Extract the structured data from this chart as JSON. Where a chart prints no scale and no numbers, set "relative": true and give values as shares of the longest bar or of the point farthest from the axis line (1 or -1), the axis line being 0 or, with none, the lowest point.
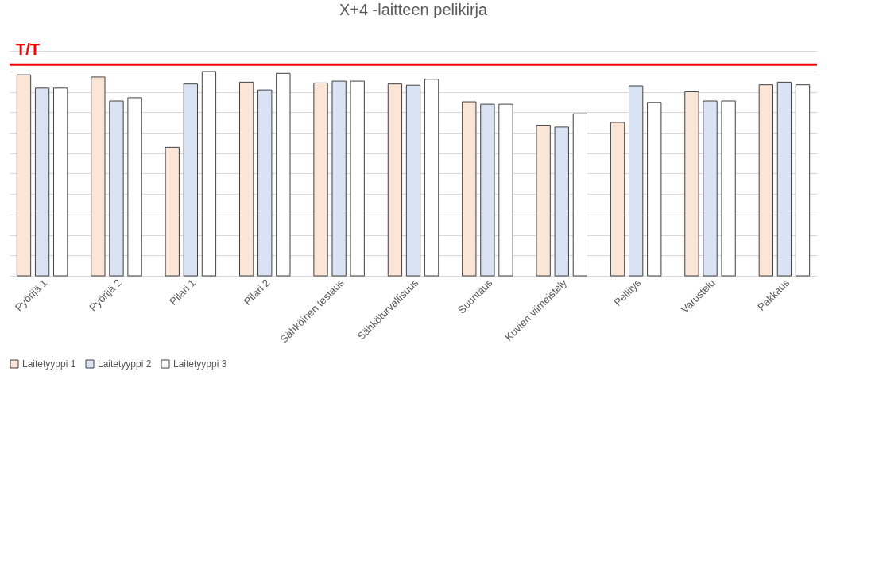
{
  "chart_data": {
    "type": "bar",
    "title": "X+4 -laitteen pelikirja",
    "relative": true,
    "grid": "y",
    "legend": "bottom",
    "categories": [
      "Pyörijä 1",
      "Pyörijä 2",
      "Pilari 1",
      "Pilari 2",
      "Sähköinen testaus",
      "Sähköturvallisuus",
      "Suuntaus",
      "Kuvien viimeistely",
      "Pellitys",
      "Varustelu",
      "Pakkaus"
    ],
    "series": [
      {
        "name": "Laitetyyppi 1",
        "color": "#fbe5d6",
        "values": [
          0.984,
          0.973,
          0.629,
          0.948,
          0.944,
          0.939,
          0.852,
          0.737,
          0.751,
          0.901,
          0.935
        ]
      },
      {
        "name": "Laitetyyppi 2",
        "color": "#dae3f3",
        "values": [
          0.919,
          0.856,
          0.939,
          0.91,
          0.953,
          0.933,
          0.84,
          0.728,
          0.93,
          0.856,
          0.948
        ]
      },
      {
        "name": "Laitetyyppi 3",
        "color": "#ffffff",
        "values": [
          0.919,
          0.872,
          1,
          0.991,
          0.953,
          0.962,
          0.84,
          0.793,
          0.849,
          0.856,
          0.935
        ]
      }
    ],
    "ref_lines": [
      {
        "axis": "y",
        "value": 1.034,
        "label": "T/T",
        "color": "#ff0000"
      }
    ]
  }
}
